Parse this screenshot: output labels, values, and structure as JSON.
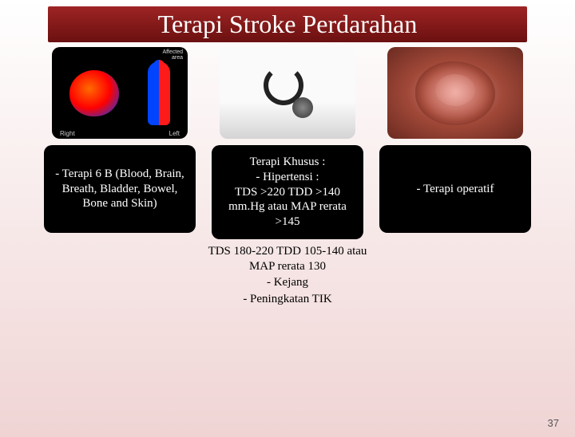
{
  "title": "Terapi Stroke Perdarahan",
  "columns": [
    {
      "card_text": "- Terapi 6 B (Blood, Brain, Breath, Bladder, Bowel, Bone and Skin)",
      "img_labels": {
        "right": "Right",
        "left": "Left",
        "affected": "Affected\narea"
      }
    },
    {
      "card_text": "Terapi Khusus :\n- Hipertensi :\nTDS >220 TDD >140 mm.Hg atau MAP rerata >145",
      "extra": [
        "TDS 180-220 TDD 105-140 atau MAP rerata 130",
        "- Kejang",
        "- Peningkatan TIK"
      ]
    },
    {
      "card_text": "- Terapi operatif"
    }
  ],
  "page_number": "37"
}
